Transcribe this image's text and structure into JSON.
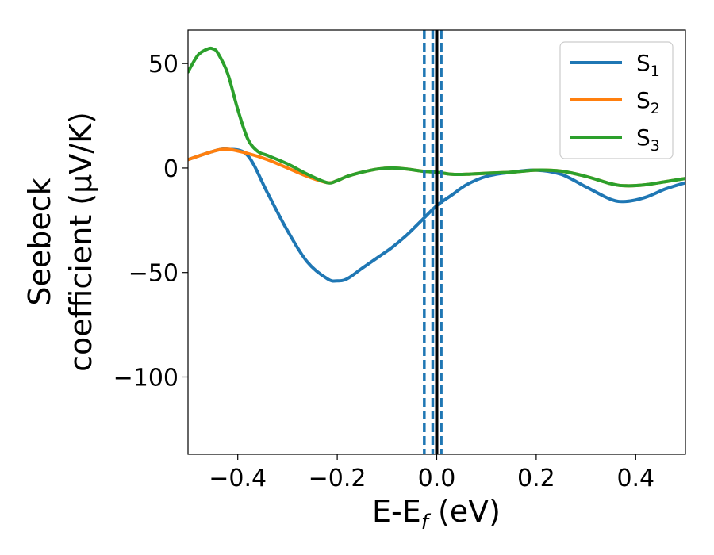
{
  "chart_data": {
    "type": "line",
    "xlabel": {
      "main": "E-E",
      "sub": "f",
      "tail": " (eV)"
    },
    "ylabel": {
      "line1": "Seebeck",
      "line2": "coefficient  (μV/K)"
    },
    "xlim": [
      -0.5,
      0.5
    ],
    "ylim": [
      -137,
      66
    ],
    "xticks": [
      {
        "value": -0.4,
        "label": "−0.4"
      },
      {
        "value": -0.2,
        "label": "−0.2"
      },
      {
        "value": 0.0,
        "label": "0.0"
      },
      {
        "value": 0.2,
        "label": "0.2"
      },
      {
        "value": 0.4,
        "label": "0.4"
      }
    ],
    "yticks": [
      {
        "value": 50,
        "label": "50"
      },
      {
        "value": 0,
        "label": "0"
      },
      {
        "value": -50,
        "label": "−50"
      },
      {
        "value": -100,
        "label": "−100"
      }
    ],
    "grid": false,
    "legend_position": "top-right",
    "series": [
      {
        "name": "S",
        "sub": "1",
        "color": "#1f77b4",
        "x": [
          -0.5,
          -0.45,
          -0.42,
          -0.38,
          -0.34,
          -0.3,
          -0.26,
          -0.22,
          -0.2,
          -0.18,
          -0.15,
          -0.12,
          -0.09,
          -0.06,
          -0.03,
          0.0,
          0.03,
          0.06,
          0.1,
          0.15,
          0.2,
          0.25,
          0.3,
          0.35,
          0.38,
          0.42,
          0.46,
          0.5
        ],
        "y": [
          4,
          8,
          9,
          6,
          -12,
          -30,
          -45,
          -53,
          -54,
          -53,
          -48,
          -43,
          -38,
          -32,
          -25,
          -18,
          -13,
          -8,
          -4,
          -2,
          -1,
          -3,
          -9,
          -15,
          -16,
          -14,
          -10,
          -7
        ]
      },
      {
        "name": "S",
        "sub": "2",
        "color": "#ff7f0e",
        "x": [
          -0.5,
          -0.45,
          -0.42,
          -0.38,
          -0.34,
          -0.3,
          -0.26,
          -0.22,
          -0.2,
          -0.18,
          -0.15,
          -0.12,
          -0.09,
          -0.06,
          -0.03,
          0.0,
          0.03,
          0.06,
          0.1,
          0.15,
          0.2,
          0.25,
          0.3,
          0.35,
          0.38,
          0.42,
          0.46,
          0.5
        ],
        "y": [
          4,
          8,
          9,
          7,
          4,
          0,
          -4,
          -7,
          -6,
          -4,
          -2,
          -0.5,
          0,
          -0.5,
          -1.5,
          -2,
          -3,
          -3,
          -2.5,
          -2,
          -1,
          -1.5,
          -4,
          -7.5,
          -8.5,
          -8,
          -6.5,
          -5
        ]
      },
      {
        "name": "S",
        "sub": "3",
        "color": "#2ca02c",
        "x": [
          -0.5,
          -0.48,
          -0.46,
          -0.45,
          -0.44,
          -0.42,
          -0.4,
          -0.38,
          -0.36,
          -0.34,
          -0.3,
          -0.26,
          -0.22,
          -0.2,
          -0.18,
          -0.15,
          -0.12,
          -0.09,
          -0.06,
          -0.03,
          0.0,
          0.03,
          0.06,
          0.1,
          0.15,
          0.2,
          0.25,
          0.3,
          0.35,
          0.38,
          0.42,
          0.46,
          0.5
        ],
        "y": [
          46,
          54,
          57,
          57,
          55,
          45,
          28,
          14,
          8,
          6,
          2,
          -3,
          -7,
          -6,
          -4,
          -2,
          -0.5,
          0,
          -0.5,
          -1.5,
          -2,
          -3,
          -3,
          -2.5,
          -2,
          -1,
          -1.5,
          -4,
          -7.5,
          -8.5,
          -8,
          -6.5,
          -5
        ]
      }
    ],
    "vlines": [
      {
        "x": 0.0,
        "color": "#000000",
        "style": "solid"
      },
      {
        "x": -0.025,
        "color": "#1f77b4",
        "style": "dashed"
      },
      {
        "x": -0.008,
        "color": "#1f77b4",
        "style": "dashed"
      },
      {
        "x": 0.009,
        "color": "#1f77b4",
        "style": "dashed"
      }
    ]
  }
}
